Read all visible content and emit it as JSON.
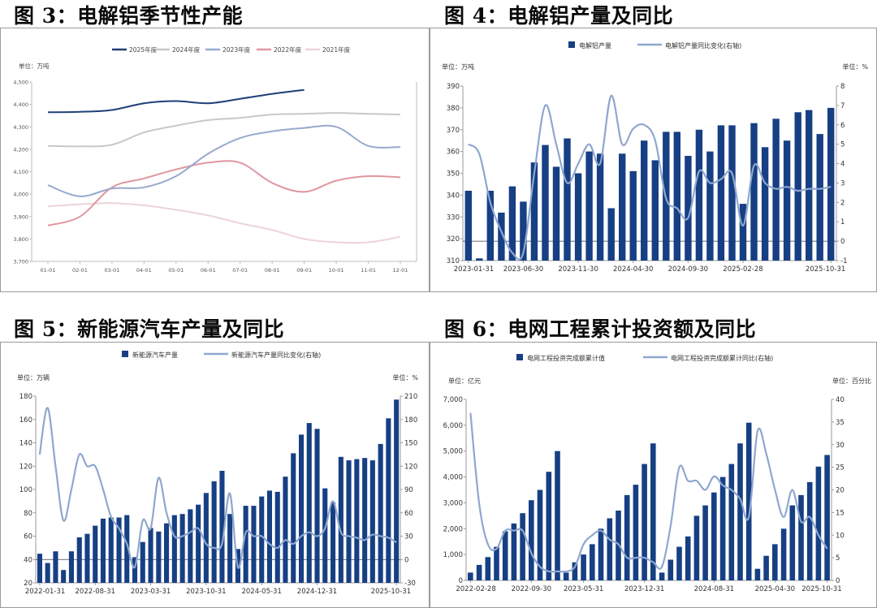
{
  "titles": {
    "fig3": "图 3：电解铝季节性产能",
    "fig4": "图 4：电解铝产量及同比",
    "fig5": "图 5：新能源汽车产量及同比",
    "fig6": "图 6：电网工程累计投资额及同比"
  },
  "chart_data": [
    {
      "id": "fig3",
      "type": "line",
      "title": "电解铝季节性产能",
      "unit_left": "单位：万吨",
      "categories": [
        "01-01",
        "02-01",
        "03-01",
        "04-01",
        "05-01",
        "06-01",
        "07-01",
        "08-01",
        "09-01",
        "10-01",
        "11-01",
        "12-01"
      ],
      "ylim": [
        3700,
        4500
      ],
      "yticks": [
        3700,
        3800,
        3900,
        4000,
        4100,
        4200,
        4300,
        4400,
        4500
      ],
      "ytick_labels": [
        "3,700",
        "3,800",
        "3,900",
        "4,000",
        "4,100",
        "4,200",
        "4,300",
        "4,400",
        "4,500"
      ],
      "legend_position": "top",
      "series": [
        {
          "name": "2025年度",
          "color": "#1f3f77",
          "values": [
            4365,
            4367,
            4375,
            4405,
            4415,
            4405,
            4425,
            4447,
            4465,
            null,
            null,
            null
          ]
        },
        {
          "name": "2024年度",
          "color": "#c8c8c8",
          "values": [
            4215,
            4213,
            4220,
            4275,
            4305,
            4330,
            4340,
            4355,
            4358,
            4362,
            4358,
            4355
          ]
        },
        {
          "name": "2023年度",
          "color": "#97a9cc",
          "values": [
            4040,
            3990,
            4025,
            4030,
            4080,
            4180,
            4250,
            4280,
            4295,
            4300,
            4215,
            4210
          ]
        },
        {
          "name": "2022年度",
          "color": "#e0969f",
          "values": [
            3860,
            3900,
            4030,
            4070,
            4110,
            4140,
            4140,
            4050,
            4010,
            4060,
            4080,
            4075
          ]
        },
        {
          "name": "2021年度",
          "color": "#ecd4d6",
          "values": [
            3945,
            3955,
            3960,
            3950,
            3930,
            3905,
            3870,
            3840,
            3800,
            3785,
            3785,
            3810
          ]
        }
      ]
    },
    {
      "id": "fig4",
      "type": "bar",
      "title": "电解铝产量及同比",
      "unit_left": "单位：万吨",
      "unit_right": "单位：%",
      "x_tick_labels": [
        "2023-01-31",
        "2023-06-30",
        "2023-11-30",
        "2024-04-30",
        "2024-09-30",
        "2025-02-28",
        "2025-10-31"
      ],
      "x_tick_index": [
        0,
        5,
        10,
        15,
        20,
        25,
        33
      ],
      "ylim": [
        310,
        390
      ],
      "yticks": [
        310,
        320,
        330,
        340,
        350,
        360,
        370,
        380,
        390
      ],
      "ylim_right": [
        -1,
        8
      ],
      "yticks_right": [
        -1,
        0,
        1,
        2,
        3,
        4,
        5,
        6,
        7,
        8
      ],
      "legend_position": "top",
      "series": [
        {
          "name": "电解铝产量",
          "type": "bar",
          "axis": "left",
          "color": "#163f84",
          "values": [
            342,
            311,
            342,
            332,
            344,
            337,
            355,
            363,
            353,
            366,
            350,
            360,
            359,
            334,
            359,
            351,
            365,
            356,
            369,
            369,
            358,
            370,
            360,
            372,
            372,
            336,
            373,
            362,
            375,
            365,
            378,
            379,
            368,
            380
          ]
        },
        {
          "name": "电解铝产量同比变化(右轴)",
          "type": "line",
          "axis": "right",
          "color": "#8fa7cf",
          "values": [
            5,
            4.5,
            2,
            0.5,
            -0.6,
            -0.6,
            3.5,
            7,
            5,
            3,
            4,
            5,
            4,
            7.5,
            5,
            5.8,
            6,
            5.2,
            2.2,
            1.7,
            1.2,
            3.6,
            3,
            3.2,
            3.5,
            0.8,
            3.9,
            3,
            2.7,
            2.8,
            2.6,
            2.7,
            2.7,
            2.8
          ]
        }
      ]
    },
    {
      "id": "fig5",
      "type": "bar",
      "title": "新能源汽车产量及同比",
      "unit_left": "单位：万辆",
      "unit_right": "单位：%",
      "x_tick_labels": [
        "2022-01-31",
        "2022-08-31",
        "2023-03-31",
        "2023-10-31",
        "2024-05-31",
        "2024-12-31",
        "2025-10-31"
      ],
      "x_tick_index": [
        0,
        7,
        14,
        21,
        28,
        35,
        45
      ],
      "ylim": [
        20,
        180
      ],
      "yticks": [
        20,
        40,
        60,
        80,
        100,
        120,
        140,
        160,
        180
      ],
      "ylim_right": [
        -30,
        210
      ],
      "yticks_right": [
        -30,
        0,
        30,
        60,
        90,
        120,
        150,
        180,
        210
      ],
      "legend_position": "top",
      "series": [
        {
          "name": "新能源汽车产量",
          "type": "bar",
          "axis": "left",
          "color": "#163f84",
          "values": [
            45,
            37,
            47,
            31,
            47,
            59,
            62,
            69,
            75,
            76,
            76,
            78,
            42,
            55,
            67,
            64,
            71,
            78,
            79,
            83,
            87,
            97,
            107,
            116,
            79,
            49,
            86,
            86,
            94,
            99,
            98,
            111,
            131,
            147,
            157,
            152,
            101,
            89,
            128,
            125,
            126,
            127,
            125,
            139,
            161,
            177
          ]
        },
        {
          "name": "新能源汽车产量同比变化(右轴)",
          "type": "line",
          "axis": "right",
          "color": "#8fa7cf",
          "values": [
            135,
            195,
            120,
            50,
            90,
            135,
            120,
            120,
            90,
            55,
            40,
            20,
            -10,
            50,
            40,
            105,
            60,
            30,
            30,
            35,
            40,
            20,
            15,
            20,
            85,
            -10,
            35,
            30,
            30,
            20,
            15,
            25,
            20,
            30,
            35,
            30,
            40,
            75,
            35,
            30,
            28,
            25,
            32,
            30,
            28,
            22
          ]
        }
      ]
    },
    {
      "id": "fig6",
      "type": "bar",
      "title": "电网工程累计投资额及同比",
      "unit_left": "单位：亿元",
      "unit_right": "单位：百分比",
      "x_tick_labels": [
        "2022-02-28",
        "2022-09-30",
        "2023-05-31",
        "2023-12-31",
        "2024-08-31",
        "2025-04-30",
        "2025-10-31"
      ],
      "x_tick_index": [
        0,
        7,
        13,
        20,
        28,
        35,
        41
      ],
      "ylim": [
        0,
        7000
      ],
      "yticks": [
        0,
        1000,
        2000,
        3000,
        4000,
        5000,
        6000,
        7000
      ],
      "ytick_labels": [
        "0",
        "1,000",
        "2,000",
        "3,000",
        "4,000",
        "5,000",
        "6,000",
        "7,000"
      ],
      "ylim_right": [
        0,
        40
      ],
      "yticks_right": [
        0,
        5,
        10,
        15,
        20,
        25,
        30,
        35,
        40
      ],
      "legend_position": "top",
      "series": [
        {
          "name": "电网工程投资完成额累计值",
          "type": "bar",
          "axis": "left",
          "color": "#163f84",
          "values": [
            300,
            600,
            900,
            1300,
            1900,
            2200,
            2600,
            3100,
            3500,
            4200,
            5000,
            300,
            700,
            1000,
            1400,
            2000,
            2400,
            2700,
            3300,
            3700,
            4500,
            5300,
            300,
            800,
            1300,
            1700,
            2500,
            2900,
            3400,
            4000,
            4500,
            5300,
            6100,
            450,
            950,
            1400,
            2000,
            2900,
            3300,
            3800,
            4400,
            4850
          ]
        },
        {
          "name": "电网工程投资完成额累计同比(右轴)",
          "type": "line",
          "axis": "right",
          "color": "#8fa7cf",
          "values": [
            37,
            17,
            8,
            7,
            11,
            11,
            11,
            6,
            3,
            2,
            2,
            2,
            3,
            8,
            10,
            11,
            9,
            8,
            5,
            5,
            5,
            4,
            3,
            12,
            25,
            22,
            22,
            20,
            23,
            21,
            20,
            18,
            14,
            33,
            28,
            20,
            14,
            20,
            13,
            14,
            10,
            7
          ]
        }
      ]
    }
  ]
}
